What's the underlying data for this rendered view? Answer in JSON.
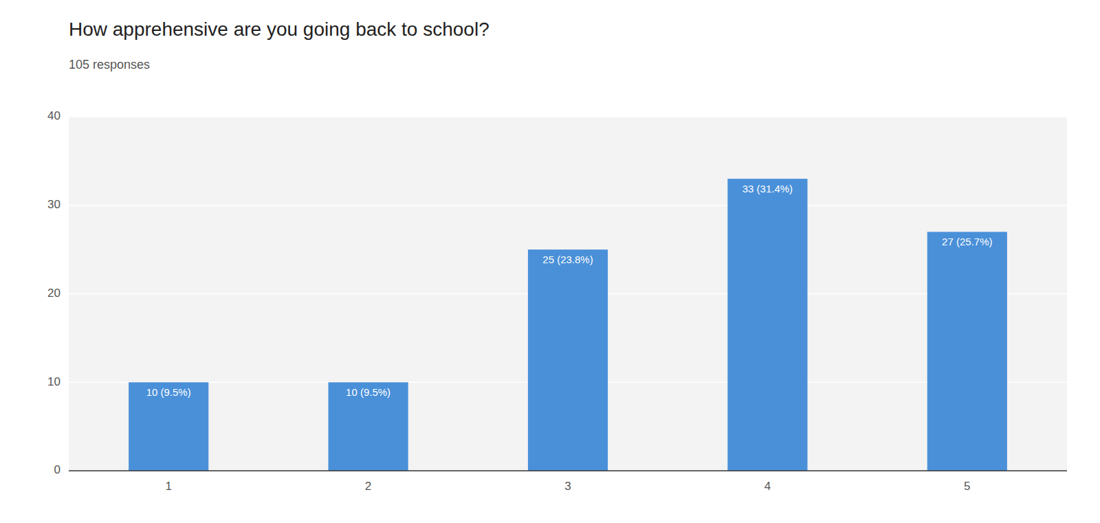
{
  "chart_data": {
    "type": "bar",
    "title": "How apprehensive are you going back to school?",
    "subtitle": "105 responses",
    "categories": [
      "1",
      "2",
      "3",
      "4",
      "5"
    ],
    "values": [
      10,
      10,
      25,
      33,
      27
    ],
    "value_labels": [
      "10 (9.5%)",
      "10 (9.5%)",
      "25 (23.8%)",
      "33 (31.4%)",
      "27 (25.7%)"
    ],
    "color": "#4A90D9",
    "ylim": [
      0,
      40
    ],
    "yticks": [
      0,
      10,
      20,
      30,
      40
    ],
    "grid": true,
    "data_labels": true
  }
}
